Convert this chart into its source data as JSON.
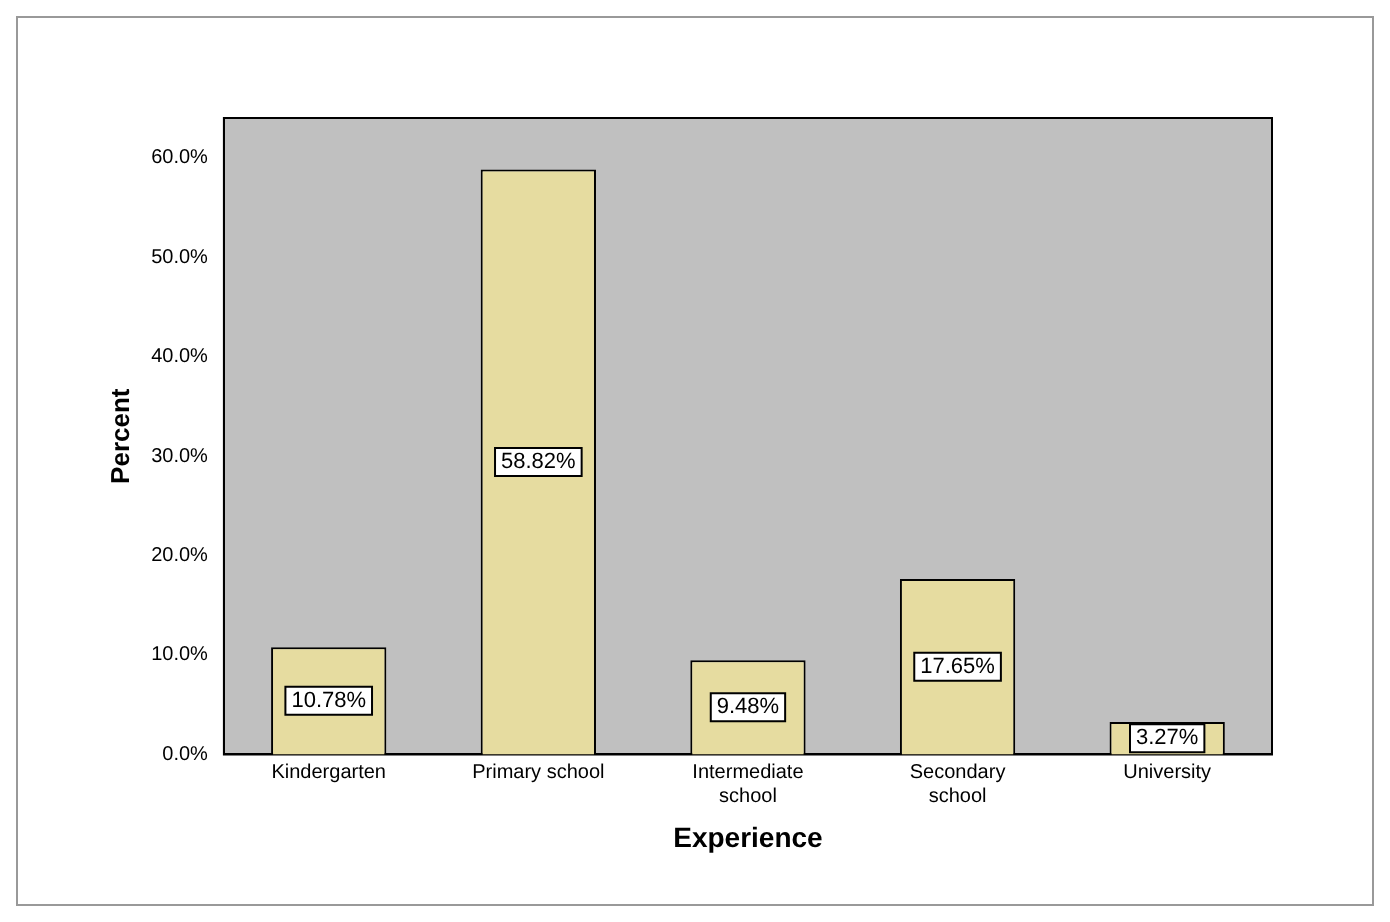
{
  "chart_data": {
    "type": "bar",
    "xlabel": "Experience",
    "ylabel": "Percent",
    "categories": [
      "Kindergarten",
      "Primary school",
      "Intermediate school",
      "Secondary school",
      "University"
    ],
    "values": [
      10.78,
      58.82,
      9.48,
      17.65,
      3.27
    ],
    "value_labels": [
      "10.78%",
      "58.82%",
      "9.48%",
      "17.65%",
      "3.27%"
    ],
    "color": "#e6dca0",
    "ylim": [
      0,
      64
    ],
    "yticks": [
      {
        "value": 0,
        "label": "0.0%"
      },
      {
        "value": 10,
        "label": "10.0%"
      },
      {
        "value": 20,
        "label": "20.0%"
      },
      {
        "value": 30,
        "label": "30.0%"
      },
      {
        "value": 40,
        "label": "40.0%"
      },
      {
        "value": 50,
        "label": "50.0%"
      },
      {
        "value": 60,
        "label": "60.0%"
      }
    ],
    "grid": false,
    "legend": false
  }
}
